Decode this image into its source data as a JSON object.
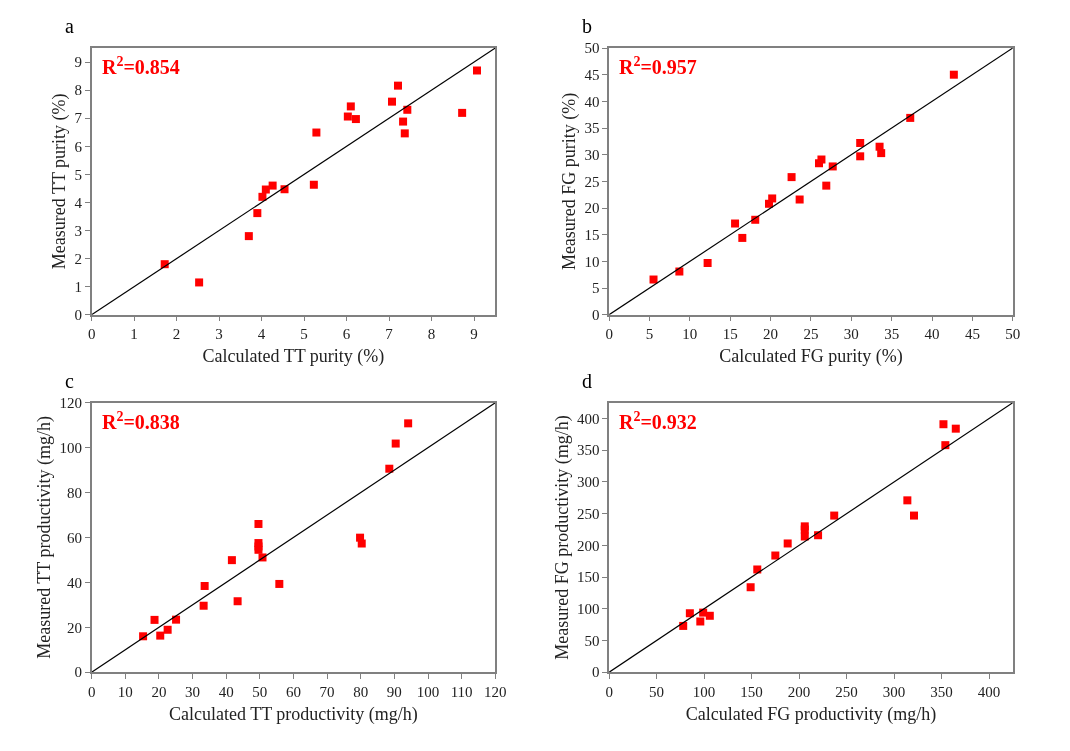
{
  "chart_data": [
    {
      "type": "scatter",
      "title": "a",
      "xlabel": "Calculated TT purity (%)",
      "ylabel": "Measured TT purity (%)",
      "annotations": [
        "R$^{2}$=0.854"
      ],
      "xlim": [
        0,
        9.5
      ],
      "ylim": [
        0,
        9.5
      ],
      "xticks": [
        0,
        1,
        2,
        3,
        4,
        5,
        6,
        7,
        8,
        9
      ],
      "yticks": [
        0,
        1,
        2,
        3,
        4,
        5,
        6,
        7,
        8,
        9
      ],
      "grid": false,
      "series": [
        {
          "color": "#ff0000",
          "marker": "square",
          "x": [
            1.72,
            2.53,
            3.7,
            3.9,
            4.02,
            4.1,
            4.26,
            4.54,
            5.23,
            5.29,
            6.03,
            6.1,
            6.22,
            7.07,
            7.21,
            7.33,
            7.37,
            7.43,
            8.72,
            9.07
          ],
          "values": [
            1.8,
            1.15,
            2.8,
            3.62,
            4.2,
            4.46,
            4.6,
            4.47,
            4.63,
            6.49,
            7.06,
            7.42,
            6.97,
            7.59,
            8.16,
            6.88,
            6.46,
            7.3,
            7.19,
            8.7
          ]
        },
        {
          "type": "line",
          "color": "#000000",
          "x": [
            0,
            9.5
          ],
          "values": [
            0,
            9.5
          ]
        }
      ]
    },
    {
      "type": "scatter",
      "title": "b",
      "xlabel": "Calculated FG purity (%)",
      "ylabel": "Measured FG purity (%)",
      "annotations": [
        "R$^{2}$=0.957"
      ],
      "xlim": [
        0,
        50
      ],
      "ylim": [
        0,
        50
      ],
      "xticks": [
        0,
        5,
        10,
        15,
        20,
        25,
        30,
        35,
        40,
        45,
        50
      ],
      "yticks": [
        0,
        5,
        10,
        15,
        20,
        25,
        30,
        35,
        40,
        45,
        50
      ],
      "grid": false,
      "series": [
        {
          "color": "#ff0000",
          "marker": "square",
          "x": [
            5.5,
            8.7,
            12.2,
            15.6,
            16.5,
            18.1,
            19.8,
            20.2,
            22.6,
            23.6,
            26.0,
            26.3,
            26.9,
            27.7,
            31.1,
            31.1,
            33.5,
            33.7,
            37.3,
            42.7
          ],
          "values": [
            6.6,
            8.1,
            9.7,
            17.1,
            14.4,
            17.8,
            20.8,
            21.8,
            25.8,
            21.6,
            28.4,
            29.1,
            24.2,
            27.8,
            32.2,
            29.7,
            31.5,
            30.3,
            36.9,
            45.0
          ]
        },
        {
          "type": "line",
          "color": "#000000",
          "x": [
            0,
            50
          ],
          "values": [
            0,
            50
          ]
        }
      ]
    },
    {
      "type": "scatter",
      "title": "c",
      "xlabel": "Calculated TT productivity (mg/h)",
      "ylabel": "Measured TT productivity (mg/h)",
      "annotations": [
        "R$^{2}$=0.838"
      ],
      "xlim": [
        0,
        120
      ],
      "ylim": [
        0,
        120
      ],
      "xticks": [
        0,
        10,
        20,
        30,
        40,
        50,
        60,
        70,
        80,
        90,
        100,
        110,
        120
      ],
      "yticks": [
        0,
        20,
        40,
        60,
        80,
        100,
        120
      ],
      "grid": false,
      "series": [
        {
          "color": "#ff0000",
          "marker": "square",
          "x": [
            15.3,
            18.7,
            20.4,
            22.6,
            25.1,
            33.3,
            33.6,
            41.7,
            43.4,
            49.6,
            49.6,
            49.6,
            49.6,
            50.8,
            55.8,
            79.8,
            80.3,
            88.5,
            90.4,
            94.1
          ],
          "values": [
            16,
            23.3,
            16.3,
            18.9,
            23.4,
            29.6,
            38.4,
            49.9,
            31.6,
            66,
            57.5,
            56,
            54.5,
            51.1,
            39.3,
            59.9,
            57.3,
            90.6,
            101.8,
            110.8
          ]
        },
        {
          "type": "line",
          "color": "#000000",
          "x": [
            0,
            120
          ],
          "values": [
            0,
            120
          ]
        }
      ]
    },
    {
      "type": "scatter",
      "title": "d",
      "xlabel": "Calculated FG productivity (mg/h)",
      "ylabel": "Measured FG productivity (mg/h)",
      "annotations": [
        "R$^{2}$=0.932"
      ],
      "xlim": [
        0,
        425
      ],
      "ylim": [
        0,
        425
      ],
      "xticks": [
        0,
        50,
        100,
        150,
        200,
        250,
        300,
        350,
        400
      ],
      "yticks": [
        0,
        50,
        100,
        150,
        200,
        250,
        300,
        350,
        400
      ],
      "grid": false,
      "series": [
        {
          "color": "#ff0000",
          "marker": "square",
          "x": [
            78,
            85,
            96,
            99,
            106,
            149,
            156,
            175,
            188,
            206,
            206,
            206,
            220,
            237,
            314,
            321,
            352,
            354,
            365
          ],
          "values": [
            73,
            93,
            80,
            94,
            89,
            134,
            162,
            184,
            203,
            230,
            225,
            214,
            216,
            247,
            271,
            247,
            391,
            358,
            384
          ]
        },
        {
          "type": "line",
          "color": "#000000",
          "x": [
            0,
            425
          ],
          "values": [
            0,
            425
          ]
        }
      ]
    }
  ]
}
